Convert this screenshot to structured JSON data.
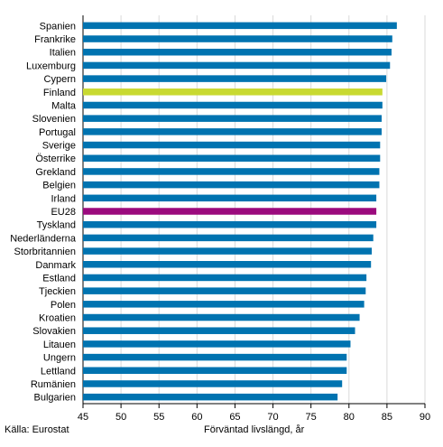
{
  "chart_data": {
    "type": "bar",
    "orientation": "horizontal",
    "categories": [
      "Spanien",
      "Frankrike",
      "Italien",
      "Luxemburg",
      "Cypern",
      "Finland",
      "Malta",
      "Slovenien",
      "Portugal",
      "Sverige",
      "Österrike",
      "Grekland",
      "Belgien",
      "Irland",
      "EU28",
      "Tyskland",
      "Nederländerna",
      "Storbritannien",
      "Danmark",
      "Estland",
      "Tjeckien",
      "Polen",
      "Kroatien",
      "Slovakien",
      "Litauen",
      "Ungern",
      "Lettland",
      "Rumänien",
      "Bulgarien"
    ],
    "values": [
      86.3,
      85.7,
      85.6,
      85.4,
      84.9,
      84.4,
      84.4,
      84.3,
      84.3,
      84.1,
      84.1,
      84.0,
      84.0,
      83.6,
      83.6,
      83.6,
      83.2,
      83.0,
      82.9,
      82.3,
      82.2,
      82.0,
      81.4,
      80.8,
      80.2,
      79.7,
      79.7,
      79.1,
      78.5
    ],
    "colors": {
      "default": "#0073b0",
      "Finland": "#c8d931",
      "EU28": "#9b0a7d"
    },
    "xlim": [
      45,
      90
    ],
    "xticks": [
      45,
      50,
      55,
      60,
      65,
      70,
      75,
      80,
      85,
      90
    ],
    "xlabel": "Förväntad livslängd, år",
    "ylabel": "",
    "title": "",
    "grid": "vertical",
    "source": "Källa: Eurostat"
  }
}
